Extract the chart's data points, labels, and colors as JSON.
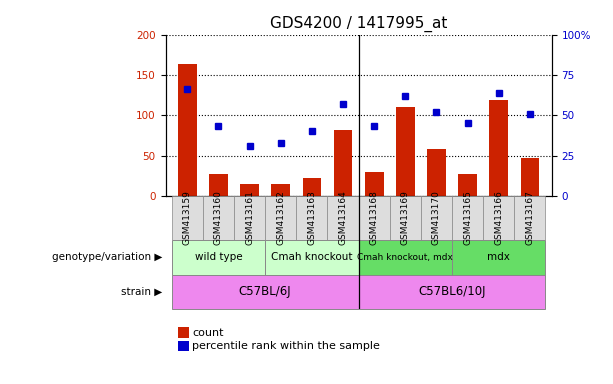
{
  "title": "GDS4200 / 1417995_at",
  "samples": [
    "GSM413159",
    "GSM413160",
    "GSM413161",
    "GSM413162",
    "GSM413163",
    "GSM413164",
    "GSM413168",
    "GSM413169",
    "GSM413170",
    "GSM413165",
    "GSM413166",
    "GSM413167"
  ],
  "counts": [
    163,
    27,
    15,
    15,
    22,
    82,
    29,
    110,
    58,
    27,
    119,
    47
  ],
  "percentiles": [
    66,
    43,
    31,
    33,
    40,
    57,
    43,
    62,
    52,
    45,
    64,
    51
  ],
  "bar_color": "#CC2200",
  "dot_color": "#0000CC",
  "ylim_left": [
    0,
    200
  ],
  "ylim_right": [
    0,
    100
  ],
  "yticks_left": [
    0,
    50,
    100,
    150,
    200
  ],
  "yticks_right": [
    0,
    25,
    50,
    75,
    100
  ],
  "yticklabels_right": [
    "0",
    "25",
    "50",
    "75",
    "100%"
  ],
  "geno_groups": [
    {
      "label": "wild type",
      "start": 0,
      "end": 3,
      "color": "#CCFFCC"
    },
    {
      "label": "Cmah knockout",
      "start": 3,
      "end": 6,
      "color": "#CCFFCC"
    },
    {
      "label": "Cmah knockout, mdx",
      "start": 6,
      "end": 9,
      "color": "#66DD66"
    },
    {
      "label": "mdx",
      "start": 9,
      "end": 12,
      "color": "#66DD66"
    }
  ],
  "strain_groups": [
    {
      "label": "C57BL/6J",
      "start": 0,
      "end": 6,
      "color": "#EE88EE"
    },
    {
      "label": "C57BL6/10J",
      "start": 6,
      "end": 12,
      "color": "#EE88EE"
    }
  ],
  "genotype_label": "genotype/variation",
  "strain_label": "strain",
  "legend_count": "count",
  "legend_percentile": "percentile rank within the sample",
  "background_color": "#FFFFFF",
  "title_fontsize": 11,
  "tick_fontsize": 7.5,
  "label_fontsize": 8,
  "sample_separator": 5.5
}
